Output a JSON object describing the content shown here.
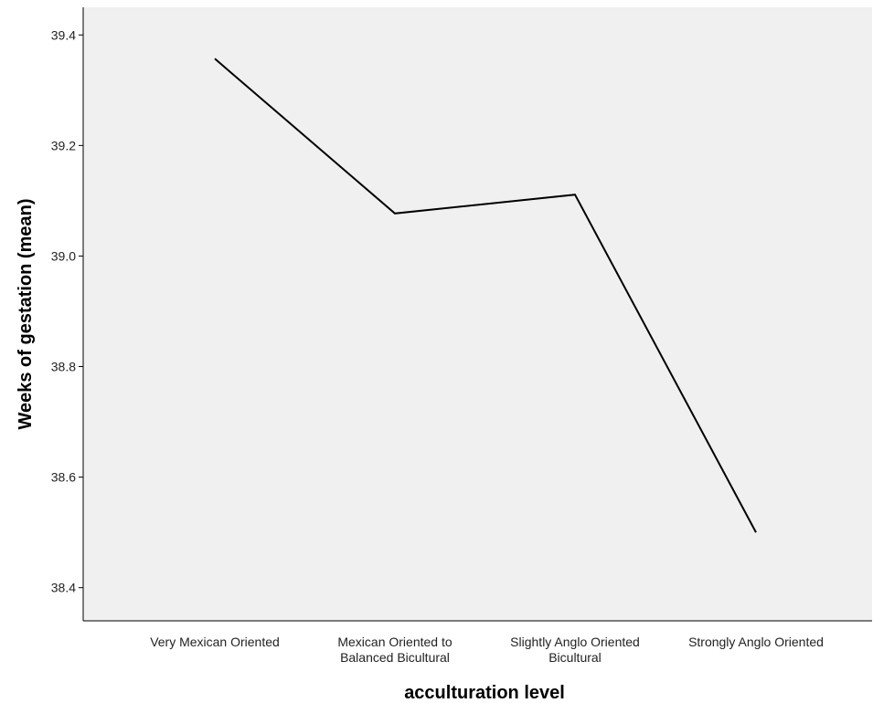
{
  "chart_data": {
    "type": "line",
    "xlabel": "acculturation level",
    "ylabel": "Weeks of gestation (mean)",
    "categories": [
      [
        "Very Mexican Oriented"
      ],
      [
        "Mexican Oriented to",
        "Balanced Bicultural"
      ],
      [
        "Slightly Anglo Oriented",
        "Bicultural"
      ],
      [
        "Strongly Anglo Oriented"
      ]
    ],
    "series": [
      {
        "values": [
          39.357,
          39.077,
          39.111,
          38.5
        ]
      }
    ],
    "ylim": [
      38.34,
      39.45
    ],
    "yticks": [
      38.4,
      38.6,
      38.8,
      39.0,
      39.2,
      39.4
    ],
    "ytick_labels": [
      "38.4",
      "38.6",
      "38.8",
      "39.0",
      "39.2",
      "39.4"
    ],
    "grid": false,
    "colors": {
      "plot_background": "#f0f0f0",
      "line": "#000000",
      "axis": "#000000"
    }
  }
}
